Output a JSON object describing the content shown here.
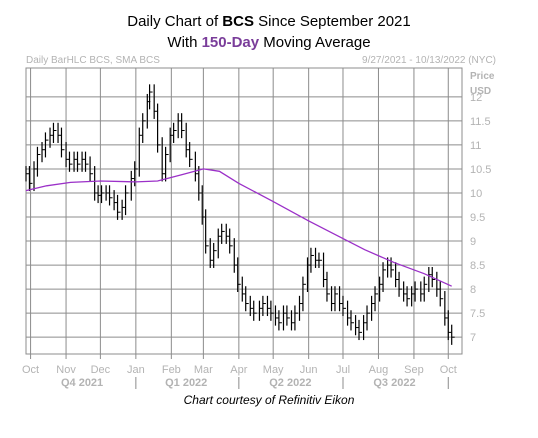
{
  "title": {
    "line1_prefix": "Daily Chart of ",
    "line1_ticker": "BCS",
    "line1_suffix": " Since September 2021",
    "line2_prefix": "With ",
    "line2_highlight": "150-Day",
    "line2_suffix": " Moving Average"
  },
  "header": {
    "left": "Daily BarHLC BCS, SMA BCS",
    "right": "9/27/2021 - 10/13/2022 (NYC)"
  },
  "axis_labels": {
    "price": "Price",
    "usd": "USD"
  },
  "caption": "Chart courtesy of Refinitiv Eikon",
  "colors": {
    "grid": "#8c8c8c",
    "bars": "#000000",
    "sma": "#9b30c8",
    "muted_text": "#b3b3b3",
    "highlight": "#7a3d9a"
  },
  "chart_data": {
    "type": "line",
    "title": "Daily Chart of BCS Since September 2021 With 150-Day Moving Average",
    "ylabel": "Price USD",
    "ylim": [
      6.65,
      12.6
    ],
    "y_ticks": [
      "7",
      "7.5",
      "8",
      "8.5",
      "9",
      "9.5",
      "10",
      "10.5",
      "11",
      "11.5",
      "12"
    ],
    "x_month_labels": [
      "Oct",
      "Nov",
      "Dec",
      "Jan",
      "Feb",
      "Mar",
      "Apr",
      "May",
      "Jun",
      "Jul",
      "Aug",
      "Sep",
      "Oct"
    ],
    "x_quarter_labels": [
      "Q4 2021",
      "Q1 2022",
      "Q2 2022",
      "Q3 2022"
    ],
    "grid": true,
    "series": [
      {
        "name": "BCS",
        "style": "daily bar HLC",
        "points": [
          {
            "date": "2021-09-27",
            "value": 10.4
          },
          {
            "date": "2021-09-30",
            "value": 10.2
          },
          {
            "date": "2021-10-04",
            "value": 10.5
          },
          {
            "date": "2021-10-07",
            "value": 10.8
          },
          {
            "date": "2021-10-11",
            "value": 10.9
          },
          {
            "date": "2021-10-14",
            "value": 11.1
          },
          {
            "date": "2021-10-18",
            "value": 11.2
          },
          {
            "date": "2021-10-21",
            "value": 11.3
          },
          {
            "date": "2021-10-25",
            "value": 11.2
          },
          {
            "date": "2021-10-28",
            "value": 10.9
          },
          {
            "date": "2021-11-01",
            "value": 10.7
          },
          {
            "date": "2021-11-04",
            "value": 10.6
          },
          {
            "date": "2021-11-08",
            "value": 10.7
          },
          {
            "date": "2021-11-11",
            "value": 10.6
          },
          {
            "date": "2021-11-15",
            "value": 10.7
          },
          {
            "date": "2021-11-18",
            "value": 10.6
          },
          {
            "date": "2021-11-22",
            "value": 10.4
          },
          {
            "date": "2021-11-26",
            "value": 10.0
          },
          {
            "date": "2021-11-29",
            "value": 9.95
          },
          {
            "date": "2021-12-02",
            "value": 10.0
          },
          {
            "date": "2021-12-06",
            "value": 10.0
          },
          {
            "date": "2021-12-09",
            "value": 9.9
          },
          {
            "date": "2021-12-13",
            "value": 9.8
          },
          {
            "date": "2021-12-16",
            "value": 9.6
          },
          {
            "date": "2021-12-20",
            "value": 9.7
          },
          {
            "date": "2021-12-23",
            "value": 10.0
          },
          {
            "date": "2021-12-28",
            "value": 10.3
          },
          {
            "date": "2021-12-31",
            "value": 10.5
          },
          {
            "date": "2022-01-04",
            "value": 11.2
          },
          {
            "date": "2022-01-07",
            "value": 11.5
          },
          {
            "date": "2022-01-11",
            "value": 11.9
          },
          {
            "date": "2022-01-13",
            "value": 12.1
          },
          {
            "date": "2022-01-17",
            "value": 11.7
          },
          {
            "date": "2022-01-20",
            "value": 11.0
          },
          {
            "date": "2022-01-24",
            "value": 10.4
          },
          {
            "date": "2022-01-27",
            "value": 10.8
          },
          {
            "date": "2022-01-31",
            "value": 11.2
          },
          {
            "date": "2022-02-03",
            "value": 11.3
          },
          {
            "date": "2022-02-07",
            "value": 11.5
          },
          {
            "date": "2022-02-10",
            "value": 11.3
          },
          {
            "date": "2022-02-14",
            "value": 10.9
          },
          {
            "date": "2022-02-17",
            "value": 10.7
          },
          {
            "date": "2022-02-22",
            "value": 10.4
          },
          {
            "date": "2022-02-25",
            "value": 10.0
          },
          {
            "date": "2022-02-28",
            "value": 9.5
          },
          {
            "date": "2022-03-03",
            "value": 8.9
          },
          {
            "date": "2022-03-07",
            "value": 8.6
          },
          {
            "date": "2022-03-10",
            "value": 8.8
          },
          {
            "date": "2022-03-14",
            "value": 9.1
          },
          {
            "date": "2022-03-17",
            "value": 9.2
          },
          {
            "date": "2022-03-21",
            "value": 9.1
          },
          {
            "date": "2022-03-24",
            "value": 8.9
          },
          {
            "date": "2022-03-28",
            "value": 8.5
          },
          {
            "date": "2022-03-31",
            "value": 8.1
          },
          {
            "date": "2022-04-04",
            "value": 7.9
          },
          {
            "date": "2022-04-07",
            "value": 7.7
          },
          {
            "date": "2022-04-11",
            "value": 7.6
          },
          {
            "date": "2022-04-14",
            "value": 7.5
          },
          {
            "date": "2022-04-19",
            "value": 7.6
          },
          {
            "date": "2022-04-22",
            "value": 7.7
          },
          {
            "date": "2022-04-26",
            "value": 7.6
          },
          {
            "date": "2022-04-29",
            "value": 7.5
          },
          {
            "date": "2022-05-03",
            "value": 7.4
          },
          {
            "date": "2022-05-06",
            "value": 7.3
          },
          {
            "date": "2022-05-10",
            "value": 7.5
          },
          {
            "date": "2022-05-13",
            "value": 7.4
          },
          {
            "date": "2022-05-17",
            "value": 7.3
          },
          {
            "date": "2022-05-20",
            "value": 7.5
          },
          {
            "date": "2022-05-24",
            "value": 7.7
          },
          {
            "date": "2022-05-27",
            "value": 8.1
          },
          {
            "date": "2022-05-31",
            "value": 8.5
          },
          {
            "date": "2022-06-03",
            "value": 8.7
          },
          {
            "date": "2022-06-07",
            "value": 8.6
          },
          {
            "date": "2022-06-10",
            "value": 8.6
          },
          {
            "date": "2022-06-14",
            "value": 8.2
          },
          {
            "date": "2022-06-17",
            "value": 7.9
          },
          {
            "date": "2022-06-21",
            "value": 7.7
          },
          {
            "date": "2022-06-24",
            "value": 7.9
          },
          {
            "date": "2022-06-28",
            "value": 7.7
          },
          {
            "date": "2022-07-01",
            "value": 7.6
          },
          {
            "date": "2022-07-05",
            "value": 7.4
          },
          {
            "date": "2022-07-08",
            "value": 7.3
          },
          {
            "date": "2022-07-12",
            "value": 7.2
          },
          {
            "date": "2022-07-15",
            "value": 7.1
          },
          {
            "date": "2022-07-19",
            "value": 7.3
          },
          {
            "date": "2022-07-22",
            "value": 7.5
          },
          {
            "date": "2022-07-26",
            "value": 7.7
          },
          {
            "date": "2022-07-29",
            "value": 7.9
          },
          {
            "date": "2022-08-02",
            "value": 8.1
          },
          {
            "date": "2022-08-05",
            "value": 8.4
          },
          {
            "date": "2022-08-09",
            "value": 8.5
          },
          {
            "date": "2022-08-12",
            "value": 8.4
          },
          {
            "date": "2022-08-16",
            "value": 8.2
          },
          {
            "date": "2022-08-19",
            "value": 8.0
          },
          {
            "date": "2022-08-23",
            "value": 7.9
          },
          {
            "date": "2022-08-26",
            "value": 7.8
          },
          {
            "date": "2022-08-30",
            "value": 7.9
          },
          {
            "date": "2022-09-02",
            "value": 8.0
          },
          {
            "date": "2022-09-07",
            "value": 7.9
          },
          {
            "date": "2022-09-10",
            "value": 8.1
          },
          {
            "date": "2022-09-14",
            "value": 8.3
          },
          {
            "date": "2022-09-17",
            "value": 8.2
          },
          {
            "date": "2022-09-21",
            "value": 8.0
          },
          {
            "date": "2022-09-24",
            "value": 7.8
          },
          {
            "date": "2022-09-28",
            "value": 7.4
          },
          {
            "date": "2022-10-01",
            "value": 7.1
          },
          {
            "date": "2022-10-04",
            "value": 7.0
          }
        ]
      },
      {
        "name": "SMA BCS",
        "style": "line",
        "points": [
          {
            "date": "2021-09-27",
            "value": 10.05
          },
          {
            "date": "2021-10-15",
            "value": 10.15
          },
          {
            "date": "2021-11-05",
            "value": 10.22
          },
          {
            "date": "2021-12-01",
            "value": 10.25
          },
          {
            "date": "2022-01-01",
            "value": 10.23
          },
          {
            "date": "2022-01-20",
            "value": 10.25
          },
          {
            "date": "2022-02-10",
            "value": 10.38
          },
          {
            "date": "2022-03-01",
            "value": 10.5
          },
          {
            "date": "2022-03-15",
            "value": 10.45
          },
          {
            "date": "2022-04-01",
            "value": 10.2
          },
          {
            "date": "2022-05-01",
            "value": 9.82
          },
          {
            "date": "2022-06-01",
            "value": 9.42
          },
          {
            "date": "2022-07-01",
            "value": 9.05
          },
          {
            "date": "2022-07-20",
            "value": 8.82
          },
          {
            "date": "2022-08-15",
            "value": 8.55
          },
          {
            "date": "2022-09-10",
            "value": 8.32
          },
          {
            "date": "2022-10-04",
            "value": 8.06
          }
        ]
      }
    ]
  }
}
